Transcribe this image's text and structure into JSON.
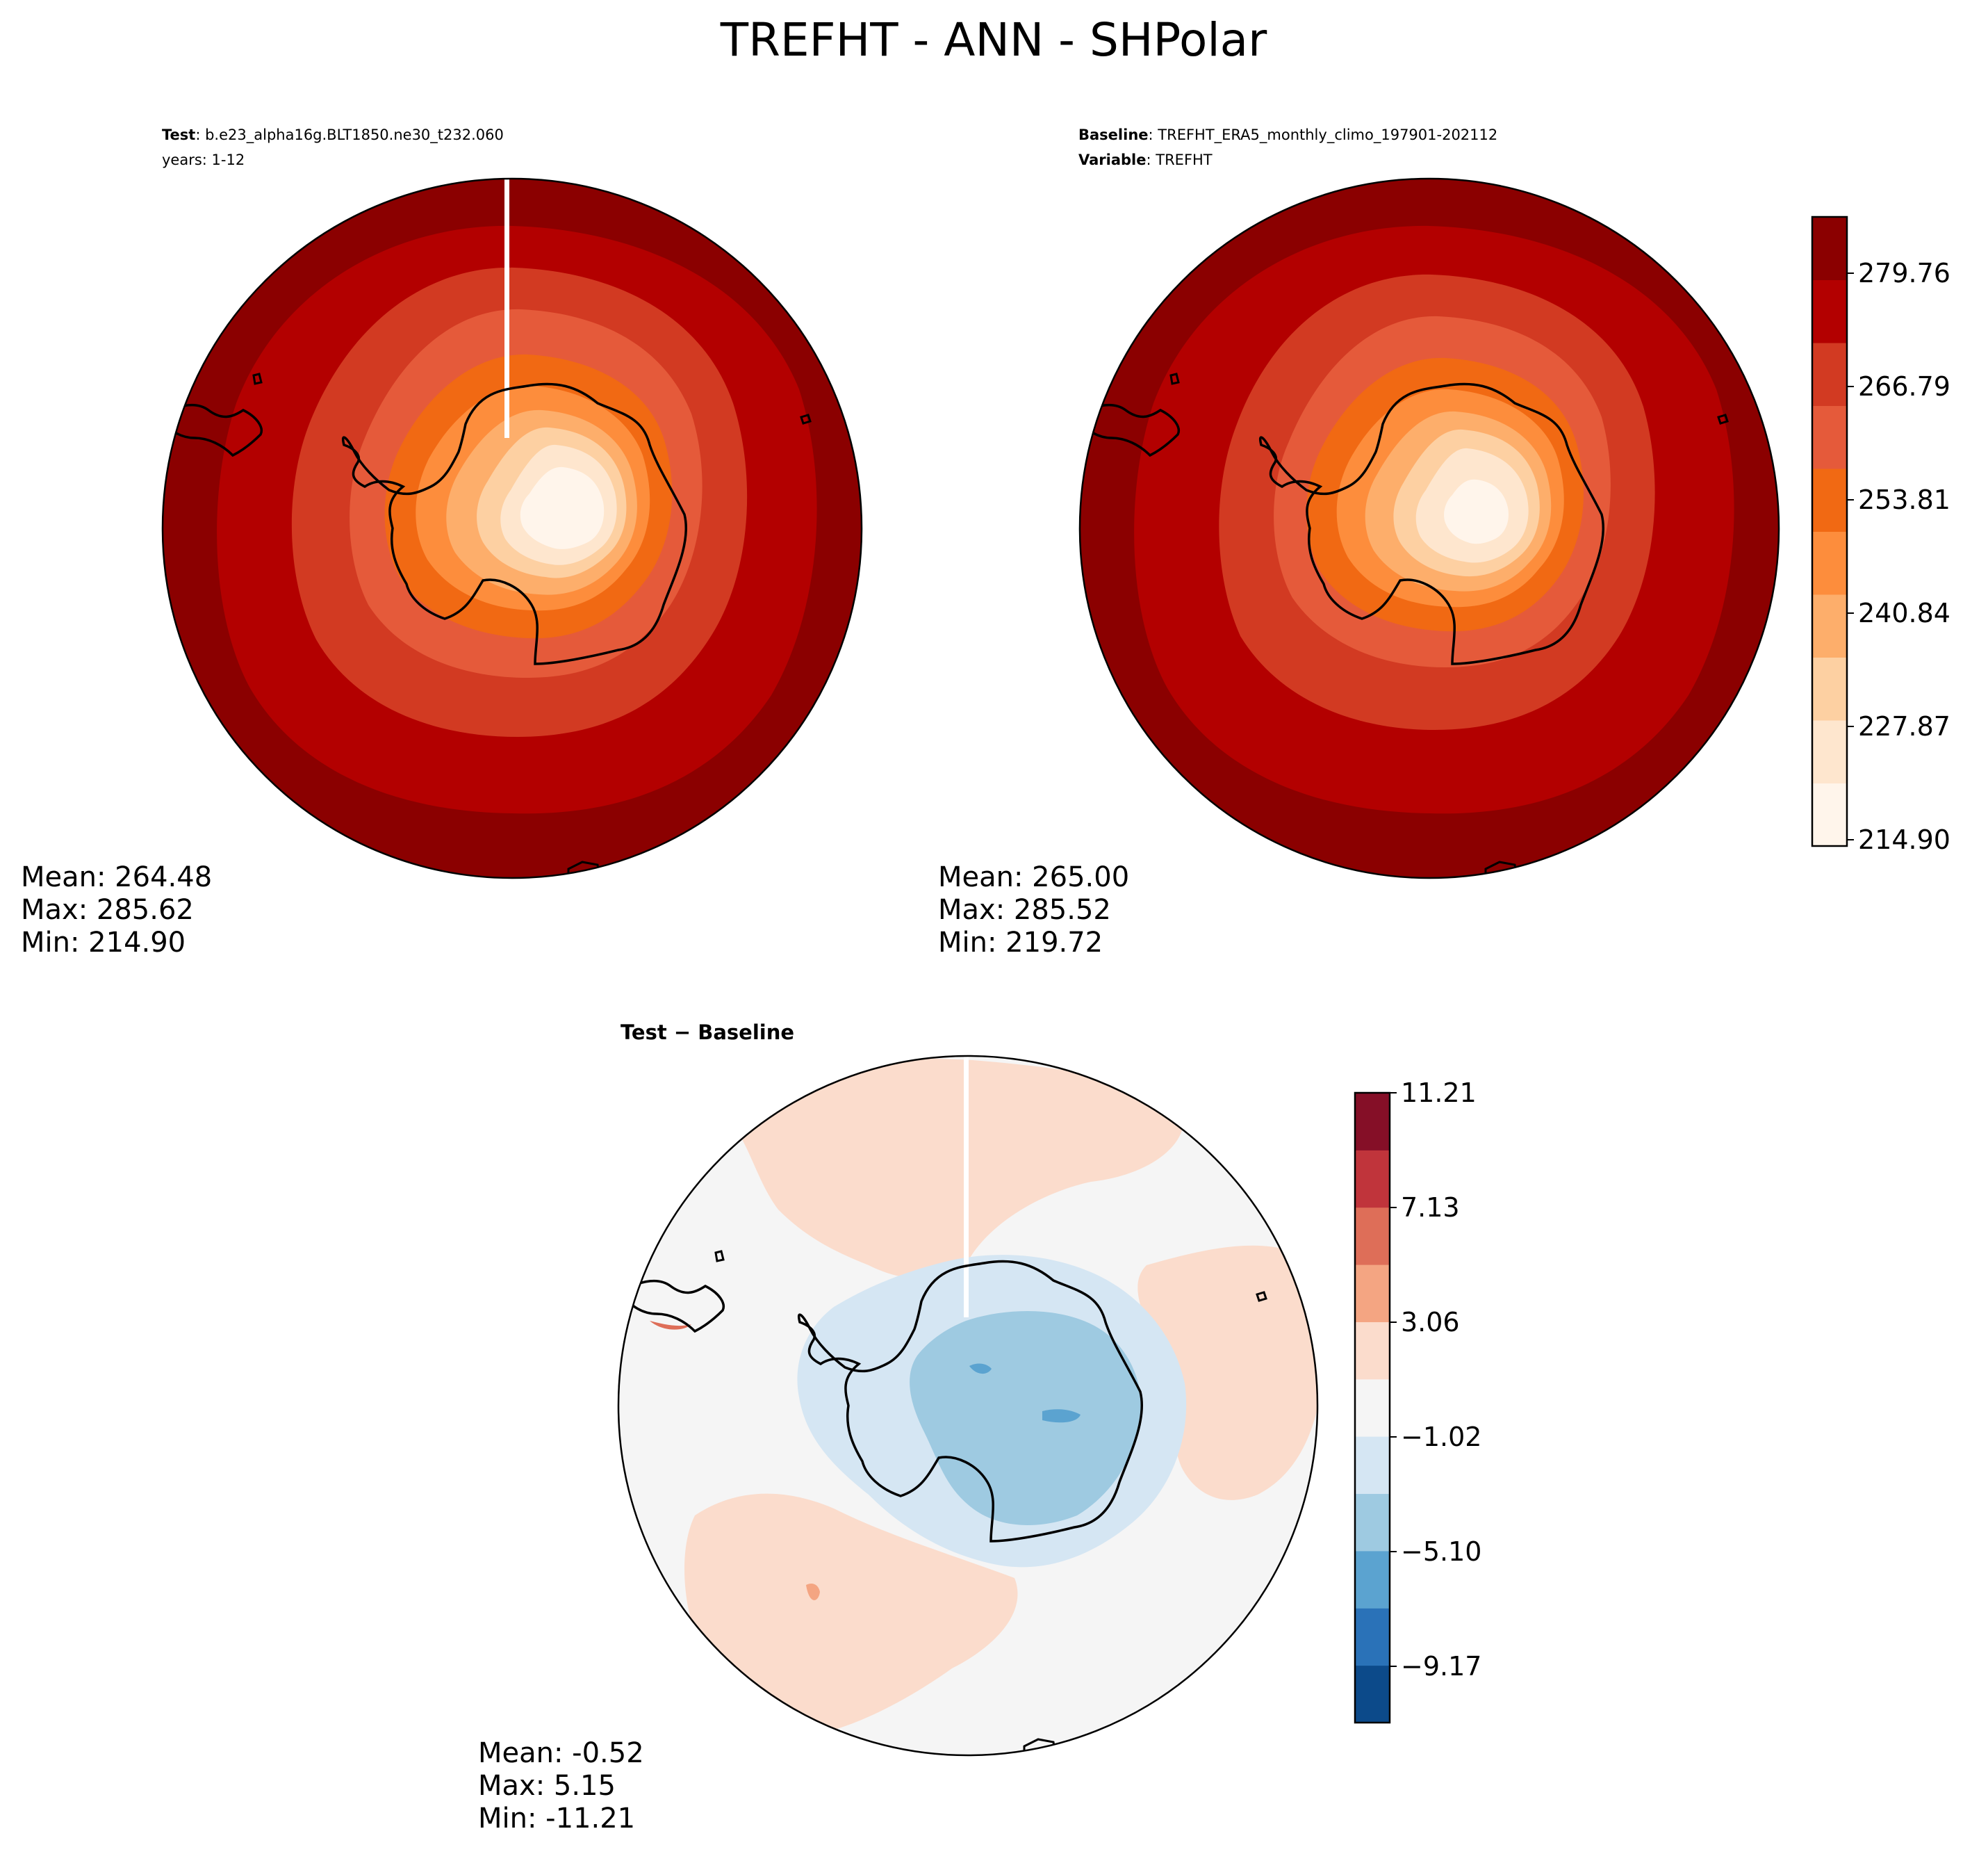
{
  "title": "TREFHT - ANN - SHPolar",
  "panels": {
    "test": {
      "label_key": "Test",
      "label_value": "b.e23_alpha16g.BLT1850.ne30_t232.060",
      "years": "years: 1-12",
      "stats": {
        "mean": "Mean: 264.48",
        "max": "Max: 285.62",
        "min": "Min: 214.90"
      }
    },
    "baseline": {
      "label_key": "Baseline",
      "label_value": "TREFHT_ERA5_monthly_climo_197901-202112",
      "variable_key": "Variable",
      "variable_value": "TREFHT",
      "stats": {
        "mean": "Mean: 265.00",
        "max": "Max: 285.52",
        "min": "Min: 219.72"
      }
    },
    "diff": {
      "title": "Test − Baseline",
      "stats": {
        "mean": "Mean: -0.52",
        "max": "Max:  5.15",
        "min": "Min: -11.21"
      }
    }
  },
  "colorbars": {
    "absolute": {
      "ticks": [
        "279.76",
        "266.79",
        "253.81",
        "240.84",
        "227.87",
        "214.90"
      ],
      "colors": [
        "#fff5eb",
        "#fee6ce",
        "#fdd0a2",
        "#fdae6b",
        "#fd8d3c",
        "#f16913",
        "#e55a3a",
        "#d23a22",
        "#b30000",
        "#8b0000"
      ]
    },
    "difference": {
      "ticks": [
        "11.21",
        "7.13",
        "3.06",
        "−1.02",
        "−5.10",
        "−9.17"
      ],
      "colors": [
        "#0c4a8a",
        "#2a72b8",
        "#5ba3d0",
        "#9ecae1",
        "#d5e6f3",
        "#f5f5f5",
        "#fbdccc",
        "#f4a582",
        "#de6e58",
        "#c0343b",
        "#850f27"
      ]
    }
  }
}
